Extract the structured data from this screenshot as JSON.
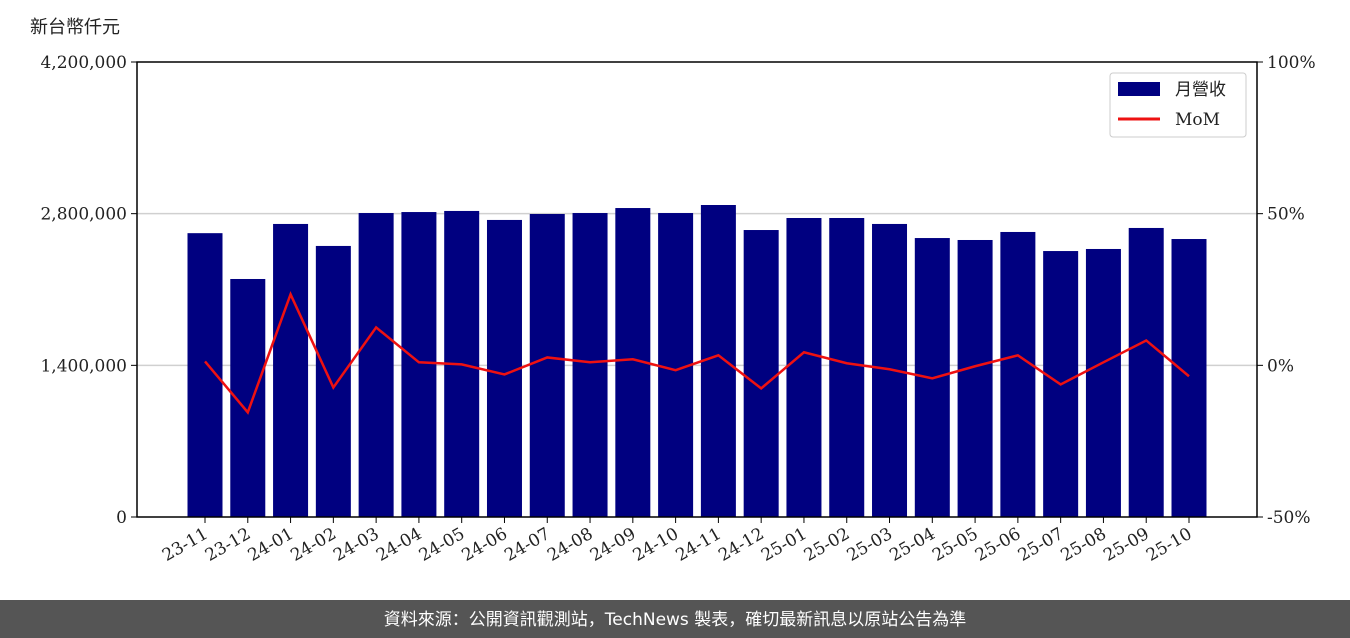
{
  "chart_data": {
    "type": "bar-line",
    "y_label": "新台幣仟元",
    "source": "資料來源：公開資訊觀測站，TechNews 製表，確切最新訊息以原站公告為準",
    "categories": [
      "23-11",
      "23-12",
      "24-01",
      "24-02",
      "24-03",
      "24-04",
      "24-05",
      "24-06",
      "24-07",
      "24-08",
      "24-09",
      "24-10",
      "24-11",
      "24-12",
      "25-01",
      "25-02",
      "25-03",
      "25-04",
      "25-05",
      "25-06",
      "25-07",
      "25-08",
      "25-09",
      "25-10"
    ],
    "series": [
      {
        "name": "月營收",
        "type": "bar",
        "color": "#000080",
        "values": [
          2620000,
          2197000,
          2705000,
          2502000,
          2806000,
          2815000,
          2825000,
          2742000,
          2797000,
          2806000,
          2852000,
          2806000,
          2880000,
          2649000,
          2760000,
          2760000,
          2705000,
          2575000,
          2557000,
          2631000,
          2455000,
          2474000,
          2668000,
          2566000
        ]
      },
      {
        "name": "MoM",
        "type": "line",
        "color": "#ee1111",
        "axis": "y2",
        "values": [
          1.3,
          -15.5,
          23.4,
          -7.3,
          12.5,
          1.0,
          0.3,
          -3.0,
          2.6,
          1.0,
          2.0,
          -1.6,
          3.3,
          -7.6,
          4.3,
          0.7,
          -1.3,
          -4.3,
          -0.3,
          3.3,
          -6.3,
          1.0,
          8.2,
          -3.6
        ]
      }
    ],
    "ylim": [
      0,
      4200000
    ],
    "yticks": [
      0,
      {
        "value": 1400000,
        "label": "1,400,000"
      },
      {
        "value": 2800000,
        "label": "2,800,000"
      },
      {
        "value": 4200000,
        "label": "4,200,000"
      }
    ],
    "y2lim": [
      -50,
      100
    ],
    "y2ticks": [
      {
        "value": -50,
        "label": "-50%"
      },
      {
        "value": 0,
        "label": "0%"
      },
      {
        "value": 50,
        "label": "50%"
      },
      {
        "value": 100,
        "label": "100%"
      }
    ],
    "grid": true,
    "legend": "upper right"
  }
}
